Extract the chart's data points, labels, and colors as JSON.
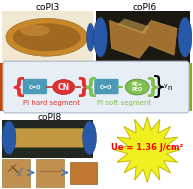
{
  "title_left": "coPI3",
  "title_right": "coPI6",
  "title_bottom_left": "coPI8",
  "label_hard": "PI hard segment",
  "label_soft": "PI soft segment",
  "label_cn": "CN",
  "label_soft_box": "PE+\nPEO",
  "energy_label": "Ue = 1.36 J/cm²",
  "bg_color": "#ffffff",
  "hard_segment_color": "#e03030",
  "soft_segment_color": "#80c050",
  "box_color": "#4a9ab8",
  "bracket_color_hard": "#e03030",
  "bracket_color_soft": "#80c050",
  "diagram_bg": "#e8eef5",
  "diagram_border": "#aab8cc",
  "star_color": "#f0f020",
  "star_edge_color": "#c8b800",
  "arrow_color": "#3377bb",
  "red_bar_color": "#cc4400",
  "green_bar_color": "#88aa20",
  "title_fontsize": 6.5,
  "segment_fontsize": 5.0,
  "energy_fontsize": 6.0,
  "top_photo_bg_left": "#c8943c",
  "top_photo_bg_right": "#1a1810",
  "bottom_photo_bg": "#202820",
  "film_amber": "#b87828",
  "film_dark": "#7a5020",
  "glove_color": "#2858a8"
}
